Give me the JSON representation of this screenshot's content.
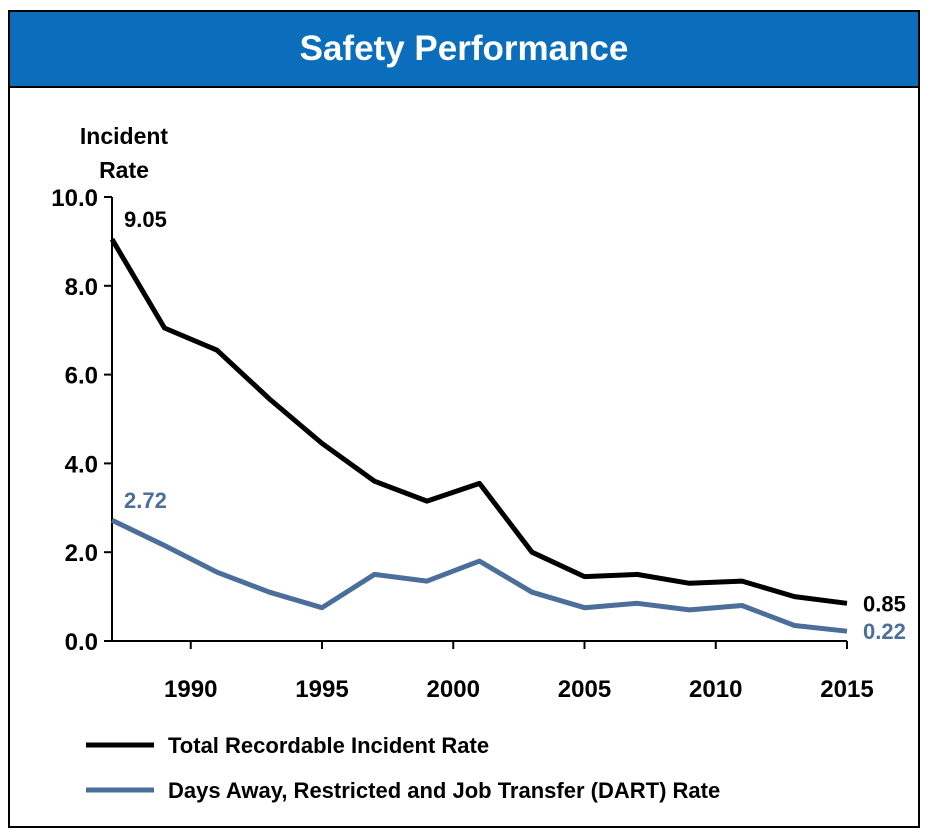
{
  "chart_data": {
    "type": "line",
    "title": "Safety Performance",
    "ylabel_lines": [
      "Incident",
      "Rate"
    ],
    "ylim": [
      0,
      10
    ],
    "xlim": [
      1987,
      2015
    ],
    "yticks": [
      "0.0",
      "2.0",
      "4.0",
      "6.0",
      "8.0",
      "10.0"
    ],
    "xticks": [
      "1990",
      "1995",
      "2000",
      "2005",
      "2010",
      "2015"
    ],
    "x": [
      1987,
      1989,
      1991,
      1993,
      1995,
      1997,
      1999,
      2001,
      2003,
      2005,
      2007,
      2009,
      2011,
      2013,
      2015
    ],
    "series": [
      {
        "name": "Total Recordable Incident Rate",
        "color": "#000000",
        "values": [
          9.05,
          7.05,
          6.55,
          5.45,
          4.45,
          3.6,
          3.15,
          3.55,
          2.0,
          1.45,
          1.5,
          1.3,
          1.35,
          1.0,
          0.85
        ],
        "start_label": "9.05",
        "end_label": "0.85"
      },
      {
        "name": "Days Away, Restricted and Job Transfer (DART) Rate",
        "color": "#4b6e9a",
        "values": [
          2.72,
          2.15,
          1.55,
          1.1,
          0.75,
          1.5,
          1.35,
          1.8,
          1.1,
          0.75,
          0.85,
          0.7,
          0.8,
          0.35,
          0.22
        ],
        "start_label": "2.72",
        "end_label": "0.22"
      }
    ],
    "grid": false,
    "legend_position": "bottom"
  }
}
